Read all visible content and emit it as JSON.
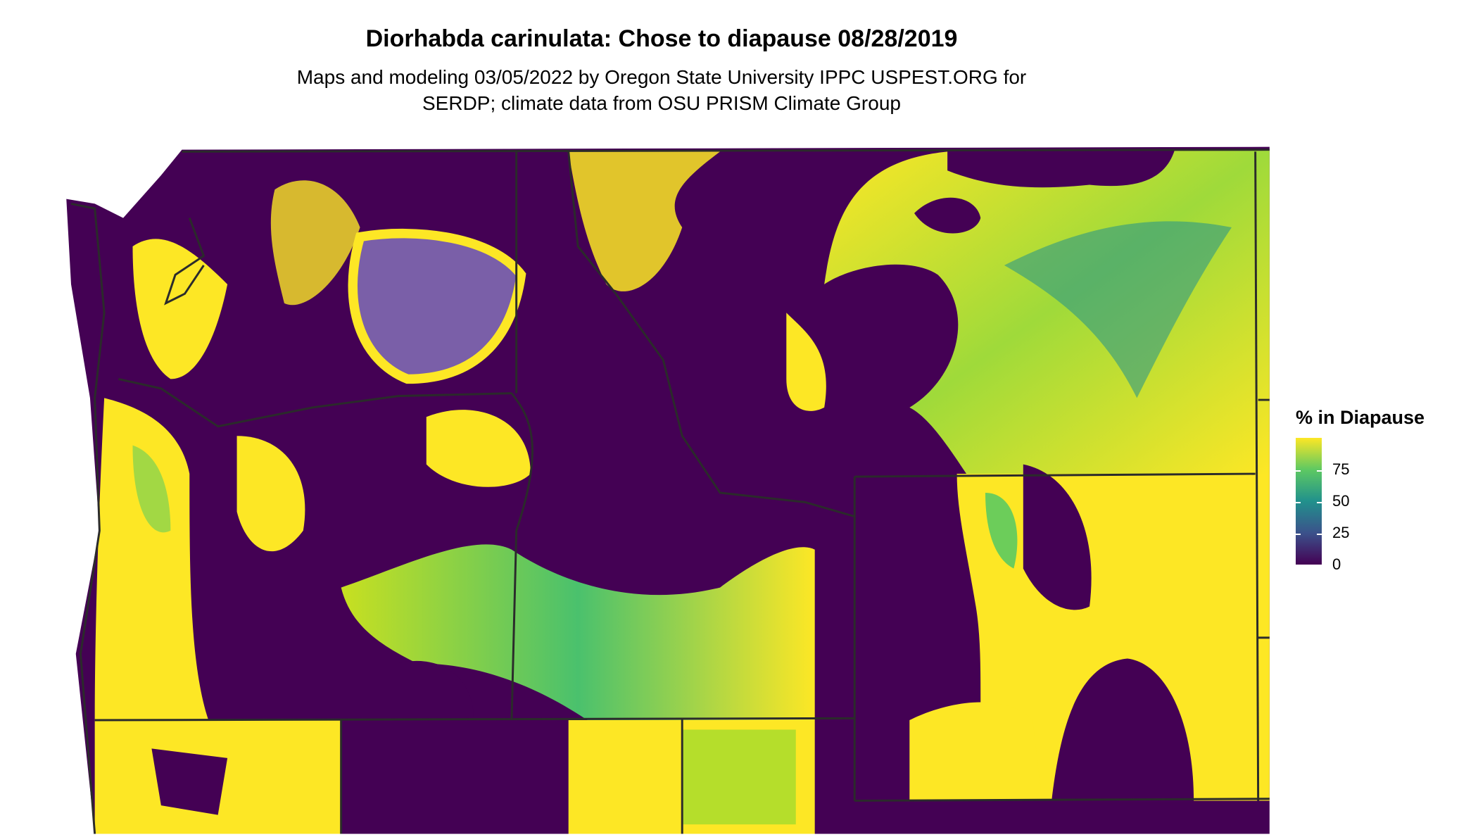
{
  "title": "Diorhabda carinulata: Chose to diapause 08/28/2019",
  "subtitle_lines": [
    "Maps and modeling 03/05/2022 by Oregon State University IPPC USPEST.ORG for",
    "SERDP; climate data from OSU PRISM Climate Group"
  ],
  "legend": {
    "title": "% in Diapause",
    "ticks": [
      "0",
      "25",
      "50",
      "75"
    ],
    "range": [
      0,
      100
    ],
    "colors": [
      "#440154",
      "#3b528b",
      "#21918c",
      "#5ec962",
      "#fde725"
    ]
  },
  "map": {
    "low_color": "#440154",
    "high_color": "#fde725",
    "border_color": "#2b2b2b"
  }
}
